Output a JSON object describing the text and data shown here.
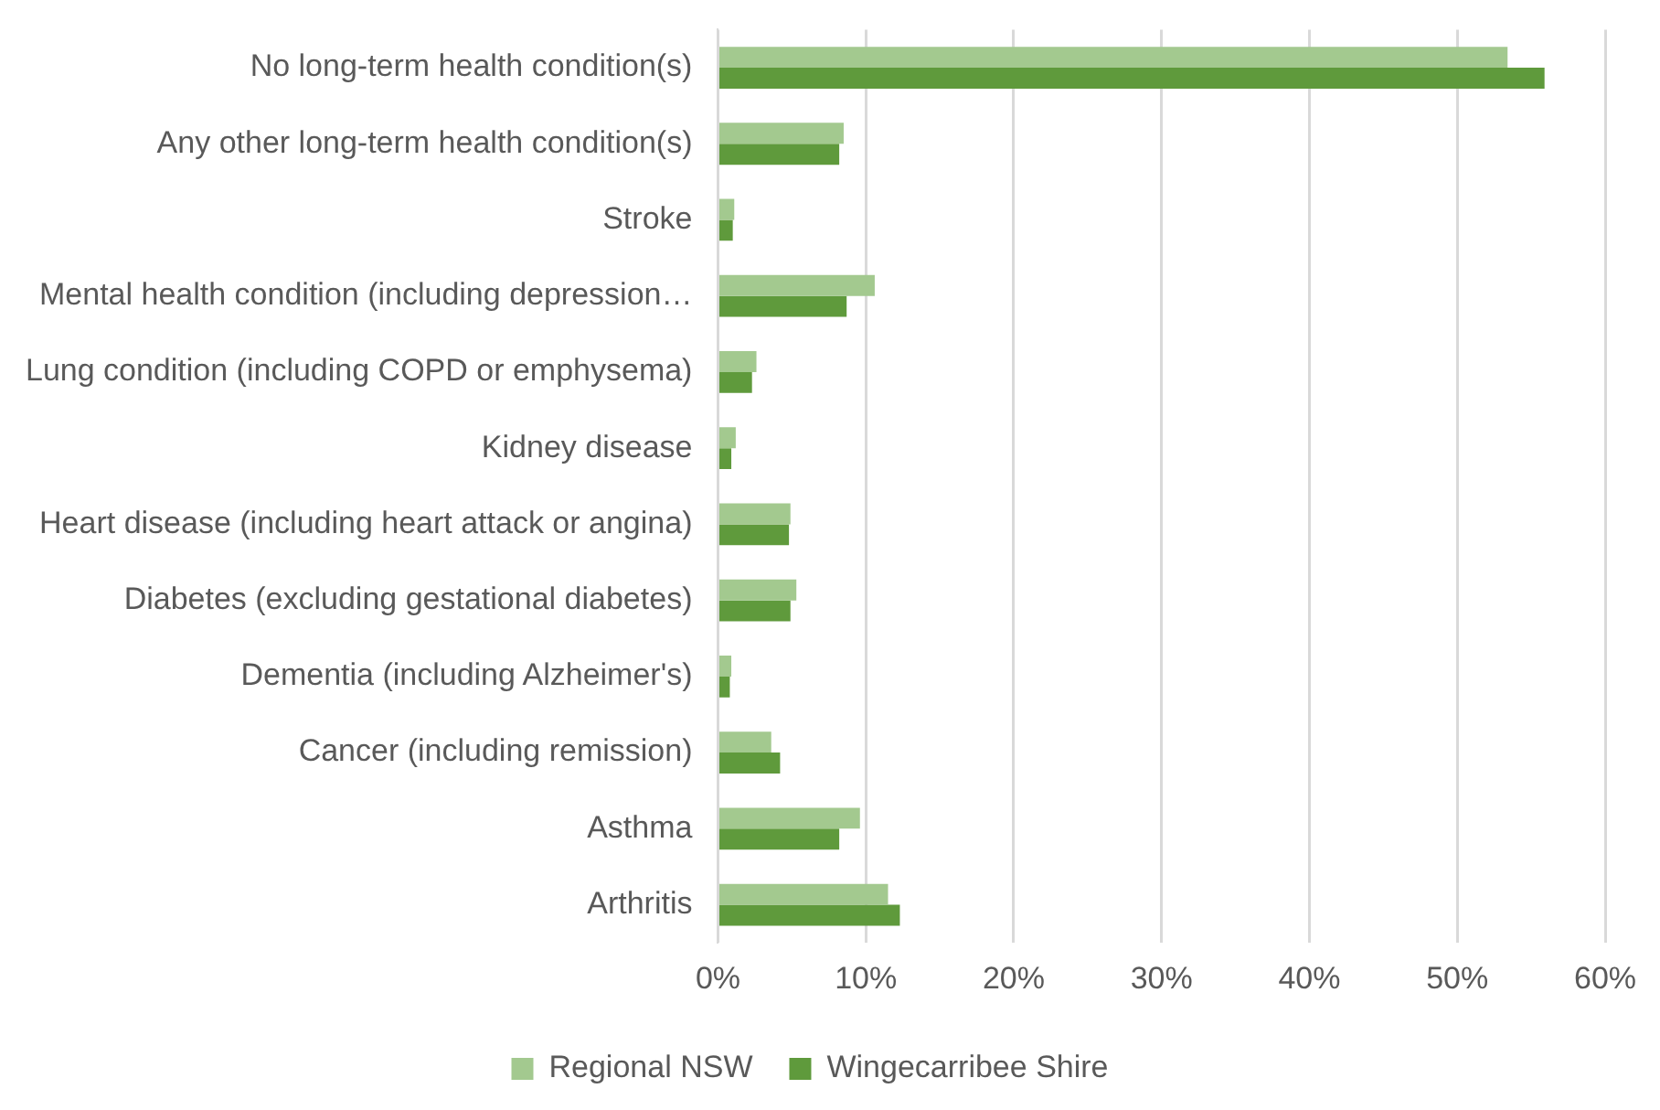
{
  "chart_data": {
    "type": "bar",
    "orientation": "horizontal",
    "categories": [
      "No long-term health condition(s)",
      "Any other long-term health condition(s)",
      "Stroke",
      "Mental health condition (including depression…",
      "Lung condition (including COPD or emphysema)",
      "Kidney disease",
      "Heart disease (including heart attack or angina)",
      "Diabetes (excluding gestational diabetes)",
      "Dementia (including Alzheimer's)",
      "Cancer (including remission)",
      "Asthma",
      "Arthritis"
    ],
    "series": [
      {
        "name": "Regional NSW",
        "color": "#a3c98f",
        "values": [
          53.4,
          8.5,
          1.1,
          10.6,
          2.6,
          1.2,
          4.9,
          5.3,
          0.9,
          3.6,
          9.6,
          11.5
        ]
      },
      {
        "name": "Wingecarribee Shire",
        "color": "#5f9a3c",
        "values": [
          55.9,
          8.2,
          1.0,
          8.7,
          2.3,
          0.9,
          4.8,
          4.9,
          0.8,
          4.2,
          8.2,
          12.3
        ]
      }
    ],
    "xlim": [
      0,
      60
    ],
    "xticks": [
      {
        "value": 0,
        "label": "0%"
      },
      {
        "value": 10,
        "label": "10%"
      },
      {
        "value": 20,
        "label": "20%"
      },
      {
        "value": 30,
        "label": "30%"
      },
      {
        "value": 40,
        "label": "40%"
      },
      {
        "value": 50,
        "label": "50%"
      },
      {
        "value": 60,
        "label": "60%"
      }
    ],
    "grid": "x",
    "legend": "bottom"
  }
}
